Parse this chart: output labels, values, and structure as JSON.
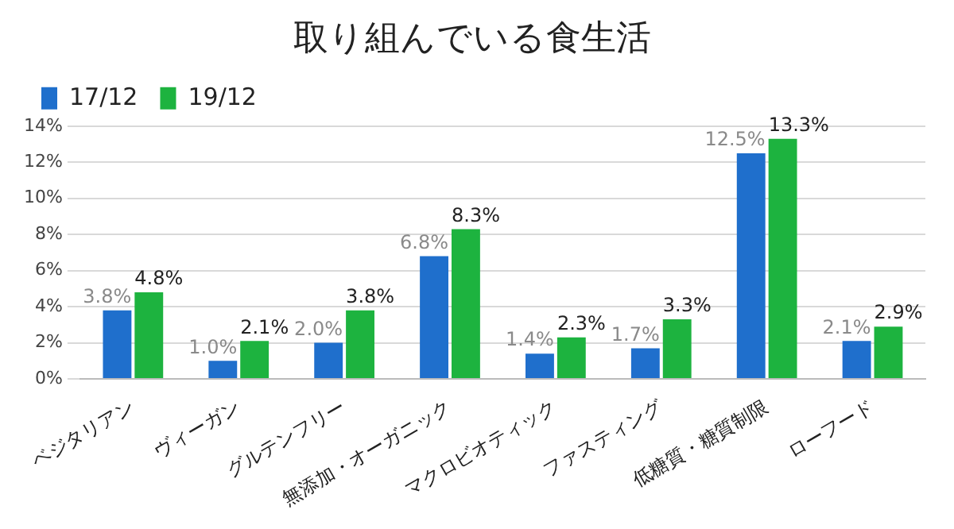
{
  "chart_data": {
    "type": "bar",
    "title": "取り組んでいる食生活",
    "categories": [
      "ベジタリアン",
      "ヴィーガン",
      "グルテンフリー",
      "無添加・オーガニック",
      "マクロビオティック",
      "ファスティング",
      "低糖質・糖質制限",
      "ローフード"
    ],
    "series": [
      {
        "name": "17/12",
        "color": "#1f6fcc",
        "values": [
          3.8,
          1.0,
          2.0,
          6.8,
          1.4,
          1.7,
          12.5,
          2.1
        ],
        "value_labels": [
          "3.8%",
          "1.0%",
          "2.0%",
          "6.8%",
          "1.4%",
          "1.7%",
          "12.5%",
          "2.1%"
        ]
      },
      {
        "name": "19/12",
        "color": "#1db33f",
        "values": [
          4.8,
          2.1,
          3.8,
          8.3,
          2.3,
          3.3,
          13.3,
          2.9
        ],
        "value_labels": [
          "4.8%",
          "2.1%",
          "3.8%",
          "8.3%",
          "2.3%",
          "3.3%",
          "13.3%",
          "2.9%"
        ]
      }
    ],
    "ylim": [
      0,
      14
    ],
    "yticks": [
      {
        "value": 0,
        "label": "0%"
      },
      {
        "value": 2,
        "label": "2%"
      },
      {
        "value": 4,
        "label": "4%"
      },
      {
        "value": 6,
        "label": "6%"
      },
      {
        "value": 8,
        "label": "8%"
      },
      {
        "value": 10,
        "label": "10%"
      },
      {
        "value": 12,
        "label": "12%"
      },
      {
        "value": 14,
        "label": "14%"
      }
    ],
    "grid": "y",
    "legend": "top left"
  }
}
